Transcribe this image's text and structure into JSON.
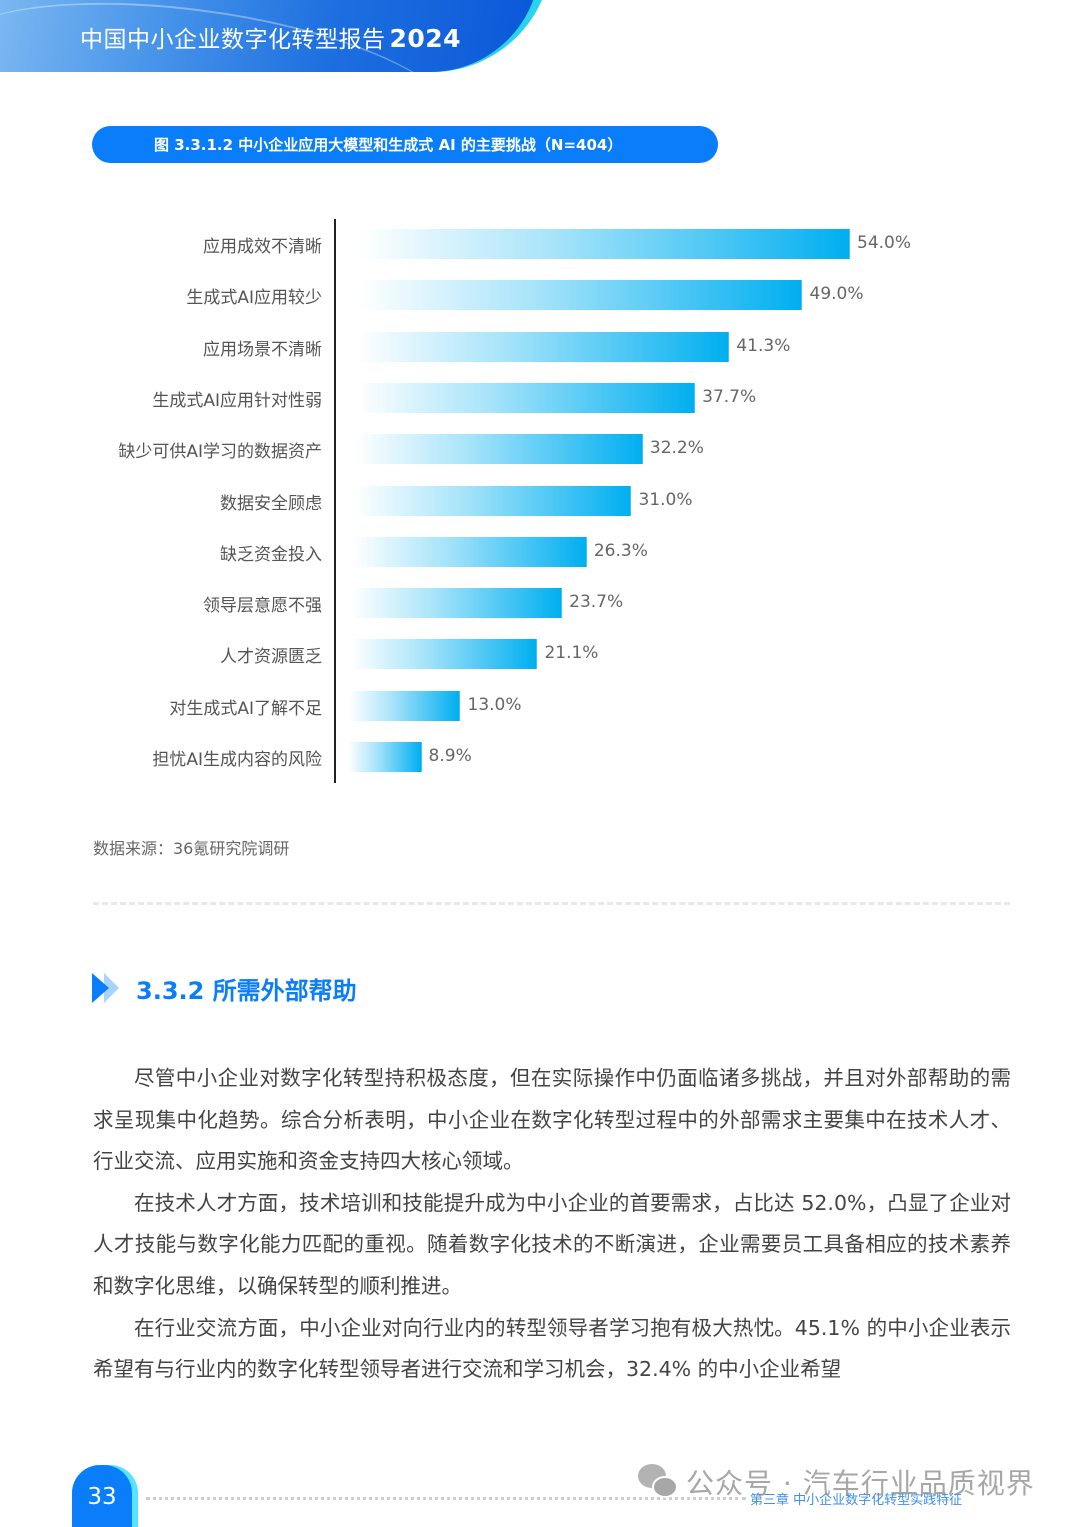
{
  "header": {
    "title": "中国中小企业数字化转型报告",
    "year": "2024"
  },
  "figure": {
    "caption": "图 3.3.1.2 中小企业应用大模型和生成式 AI 的主要挑战（N=404）"
  },
  "chart_data": {
    "type": "bar",
    "orientation": "horizontal",
    "title": "图 3.3.1.2 中小企业应用大模型和生成式 AI 的主要挑战（N=404）",
    "xlabel": "",
    "ylabel": "",
    "unit": "%",
    "grid": false,
    "legend": null,
    "xlim": [
      0,
      60
    ],
    "categories": [
      "应用成效不清晰",
      "生成式AI应用较少",
      "应用场景不清晰",
      "生成式AI应用针对性弱",
      "缺少可供AI学习的数据资产",
      "数据安全顾虑",
      "缺乏资金投入",
      "领导层意愿不强",
      "人才资源匮乏",
      "对生成式AI了解不足",
      "担忧AI生成内容的风险"
    ],
    "values": [
      54.0,
      49.0,
      41.3,
      37.7,
      32.2,
      31.0,
      26.3,
      23.7,
      21.1,
      13.0,
      8.9
    ],
    "labels": [
      "54.0%",
      "49.0%",
      "41.3%",
      "37.7%",
      "32.2%",
      "31.0%",
      "26.3%",
      "23.7%",
      "21.1%",
      "13.0%",
      "8.9%"
    ],
    "bar_color": "#00AFF0"
  },
  "source": "数据来源：36氪研究院调研",
  "section": {
    "number": "3.3.2",
    "title": "3.3.2 所需外部帮助"
  },
  "paragraphs": [
    "尽管中小企业对数字化转型持积极态度，但在实际操作中仍面临诸多挑战，并且对外部帮助的需求呈现集中化趋势。综合分析表明，中小企业在数字化转型过程中的外部需求主要集中在技术人才、行业交流、应用实施和资金支持四大核心领域。",
    "在技术人才方面，技术培训和技能提升成为中小企业的首要需求，占比达 52.0%，凸显了企业对人才技能与数字化能力匹配的重视。随着数字化技术的不断演进，企业需要员工具备相应的技术素养和数字化思维，以确保转型的顺利推进。",
    "在行业交流方面，中小企业对向行业内的转型领导者学习抱有极大热忱。45.1% 的中小企业表示希望有与行业内的数字化转型领导者进行交流和学习机会，32.4% 的中小企业希望"
  ],
  "footer": {
    "page_number": "33",
    "chapter": "第三章 中小企业数字化转型实践特征",
    "watermark": "公众号 · 汽车行业品质视界"
  },
  "colors": {
    "accent": "#0A7DFA",
    "bar": "#00AFF0",
    "banner_blue": "#1D6FE0",
    "banner_cyan": "#27D3EE"
  }
}
